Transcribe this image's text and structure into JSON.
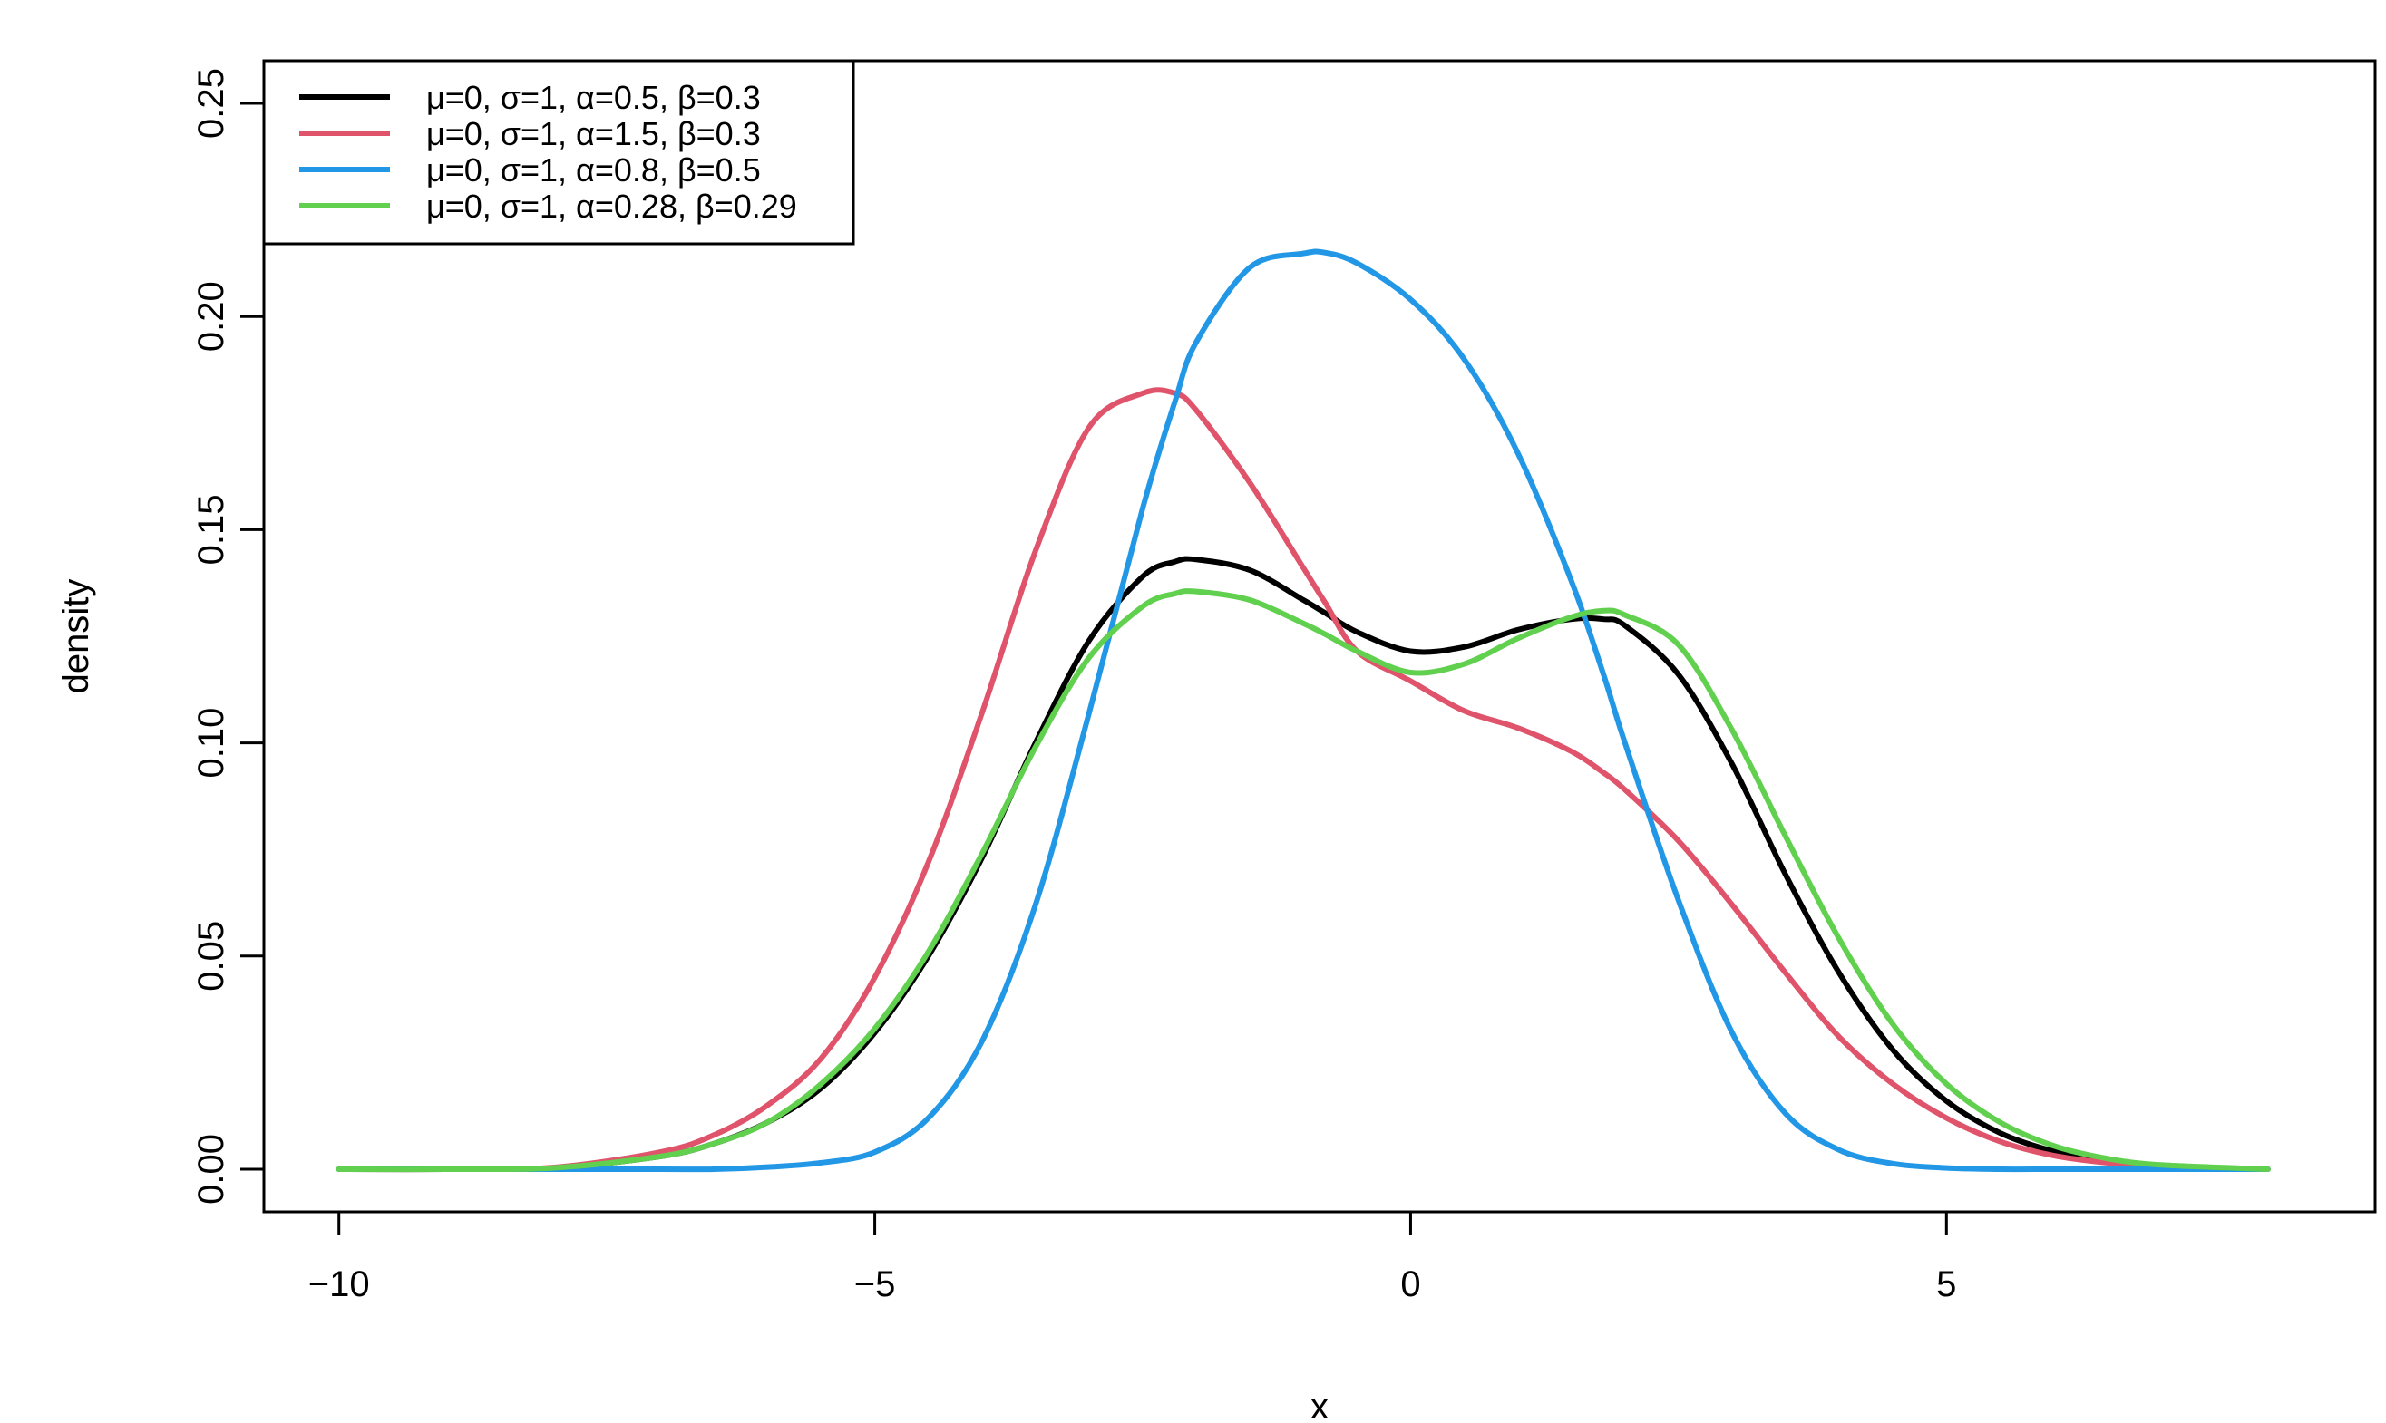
{
  "chart_data": {
    "type": "line",
    "title": "",
    "xlabel": "x",
    "ylabel": "density",
    "xlim": [
      -10.7,
      9.0
    ],
    "ylim": [
      -0.01,
      0.26
    ],
    "xticks": [
      {
        "value": -10,
        "label": "−10"
      },
      {
        "value": -5,
        "label": "−5"
      },
      {
        "value": 0,
        "label": "0"
      },
      {
        "value": 5,
        "label": "5"
      }
    ],
    "yticks": [
      {
        "value": 0.0,
        "label": "0.00"
      },
      {
        "value": 0.05,
        "label": "0.05"
      },
      {
        "value": 0.1,
        "label": "0.10"
      },
      {
        "value": 0.15,
        "label": "0.15"
      },
      {
        "value": 0.2,
        "label": "0.20"
      },
      {
        "value": 0.25,
        "label": "0.25"
      }
    ],
    "grid": false,
    "legend_position": "top-left",
    "x": [
      -10,
      -9,
      -8,
      -7,
      -6.5,
      -6,
      -5.5,
      -5,
      -4.5,
      -4,
      -3.5,
      -3,
      -2.5,
      -2.2,
      -2,
      -1.5,
      -1,
      -0.8,
      -0.5,
      0,
      0.5,
      1,
      1.5,
      1.8,
      2,
      2.5,
      3,
      3.5,
      4,
      4.5,
      5,
      5.5,
      6,
      6.5,
      7,
      8
    ],
    "series": [
      {
        "name": "μ=0, σ=1, α=0.5, β=0.3",
        "color": "#000000",
        "values": [
          0,
          0,
          0.0003,
          0.003,
          0.006,
          0.011,
          0.019,
          0.032,
          0.05,
          0.073,
          0.1,
          0.124,
          0.139,
          0.1425,
          0.143,
          0.1405,
          0.1335,
          0.1305,
          0.126,
          0.1215,
          0.1225,
          0.1265,
          0.129,
          0.129,
          0.1275,
          0.116,
          0.095,
          0.069,
          0.046,
          0.028,
          0.016,
          0.0085,
          0.0042,
          0.0018,
          0.0007,
          0
        ]
      },
      {
        "name": "μ=0, σ=1, α=1.5, β=0.3",
        "color": "#DF536B",
        "values": [
          0,
          0,
          0.0004,
          0.004,
          0.008,
          0.015,
          0.026,
          0.045,
          0.072,
          0.107,
          0.145,
          0.174,
          0.182,
          0.182,
          0.178,
          0.161,
          0.141,
          0.133,
          0.1215,
          0.1145,
          0.1075,
          0.1035,
          0.098,
          0.093,
          0.089,
          0.077,
          0.062,
          0.046,
          0.031,
          0.02,
          0.012,
          0.0065,
          0.0032,
          0.0015,
          0.0006,
          0
        ]
      },
      {
        "name": "μ=0, σ=1, α=0.8, β=0.5",
        "color": "#2297E6",
        "values": [
          0,
          0,
          0,
          0,
          0,
          0.0005,
          0.0015,
          0.004,
          0.012,
          0.03,
          0.062,
          0.107,
          0.155,
          0.18,
          0.194,
          0.2115,
          0.2148,
          0.215,
          0.2125,
          0.204,
          0.19,
          0.168,
          0.138,
          0.116,
          0.1,
          0.063,
          0.032,
          0.013,
          0.0045,
          0.0013,
          0.0003,
          0,
          0,
          0,
          0,
          0
        ]
      },
      {
        "name": "μ=0, σ=1, α=0.28, β=0.29",
        "color": "#61D04F",
        "values": [
          0,
          0,
          0.0003,
          0.003,
          0.006,
          0.011,
          0.02,
          0.033,
          0.051,
          0.074,
          0.099,
          0.12,
          0.132,
          0.135,
          0.1355,
          0.1335,
          0.128,
          0.1255,
          0.1215,
          0.1165,
          0.1185,
          0.1245,
          0.1295,
          0.131,
          0.13,
          0.123,
          0.103,
          0.078,
          0.054,
          0.034,
          0.02,
          0.011,
          0.0055,
          0.0025,
          0.001,
          0
        ]
      }
    ]
  }
}
